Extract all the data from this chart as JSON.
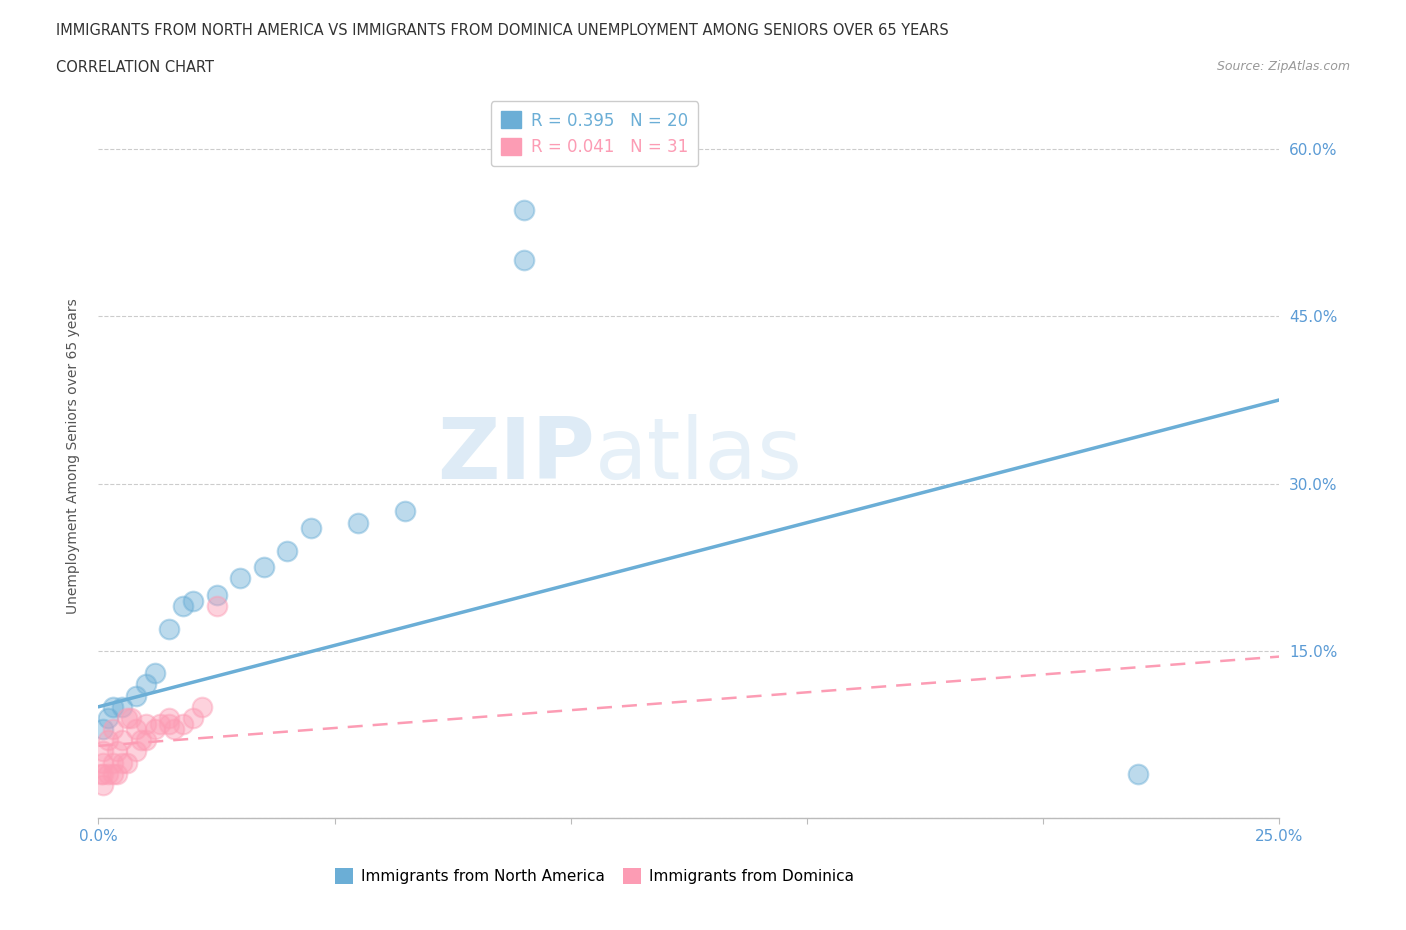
{
  "title_line1": "IMMIGRANTS FROM NORTH AMERICA VS IMMIGRANTS FROM DOMINICA UNEMPLOYMENT AMONG SENIORS OVER 65 YEARS",
  "title_line2": "CORRELATION CHART",
  "source": "Source: ZipAtlas.com",
  "ylabel": "Unemployment Among Seniors over 65 years",
  "xlim": [
    0.0,
    0.25
  ],
  "ylim": [
    0.0,
    0.65
  ],
  "xticks_shown": [
    0.0,
    0.25
  ],
  "xtick_minor": [
    0.05,
    0.1,
    0.15,
    0.2
  ],
  "yticks": [
    0.0,
    0.15,
    0.3,
    0.45,
    0.6
  ],
  "ytick_labels_right": [
    "",
    "15.0%",
    "30.0%",
    "45.0%",
    "60.0%"
  ],
  "xtick_labels_shown": [
    "0.0%",
    "25.0%"
  ],
  "blue_color": "#6baed6",
  "pink_color": "#fc9cb4",
  "blue_R": 0.395,
  "blue_N": 20,
  "pink_R": 0.041,
  "pink_N": 31,
  "watermark_zip": "ZIP",
  "watermark_atlas": "atlas",
  "legend_label_blue": "Immigrants from North America",
  "legend_label_pink": "Immigrants from Dominica",
  "blue_scatter_x": [
    0.001,
    0.002,
    0.003,
    0.005,
    0.008,
    0.01,
    0.012,
    0.015,
    0.018,
    0.02,
    0.025,
    0.03,
    0.035,
    0.04,
    0.045,
    0.055,
    0.065,
    0.09,
    0.09,
    0.22
  ],
  "blue_scatter_y": [
    0.08,
    0.09,
    0.1,
    0.1,
    0.11,
    0.12,
    0.13,
    0.17,
    0.19,
    0.195,
    0.2,
    0.215,
    0.225,
    0.24,
    0.26,
    0.265,
    0.275,
    0.5,
    0.545,
    0.04
  ],
  "pink_scatter_x": [
    0.0005,
    0.001,
    0.001,
    0.001,
    0.001,
    0.002,
    0.002,
    0.003,
    0.003,
    0.003,
    0.004,
    0.004,
    0.005,
    0.005,
    0.006,
    0.006,
    0.007,
    0.008,
    0.008,
    0.009,
    0.01,
    0.01,
    0.012,
    0.013,
    0.015,
    0.015,
    0.016,
    0.018,
    0.02,
    0.022,
    0.025
  ],
  "pink_scatter_y": [
    0.04,
    0.03,
    0.04,
    0.05,
    0.06,
    0.04,
    0.07,
    0.04,
    0.05,
    0.08,
    0.04,
    0.06,
    0.05,
    0.07,
    0.05,
    0.09,
    0.09,
    0.06,
    0.08,
    0.07,
    0.07,
    0.085,
    0.08,
    0.085,
    0.085,
    0.09,
    0.08,
    0.085,
    0.09,
    0.1,
    0.19
  ],
  "blue_line_x": [
    0.0,
    0.25
  ],
  "blue_line_y": [
    0.1,
    0.375
  ],
  "pink_line_x": [
    0.0,
    0.25
  ],
  "pink_line_y": [
    0.065,
    0.145
  ],
  "background_color": "#ffffff",
  "grid_color": "#cccccc"
}
